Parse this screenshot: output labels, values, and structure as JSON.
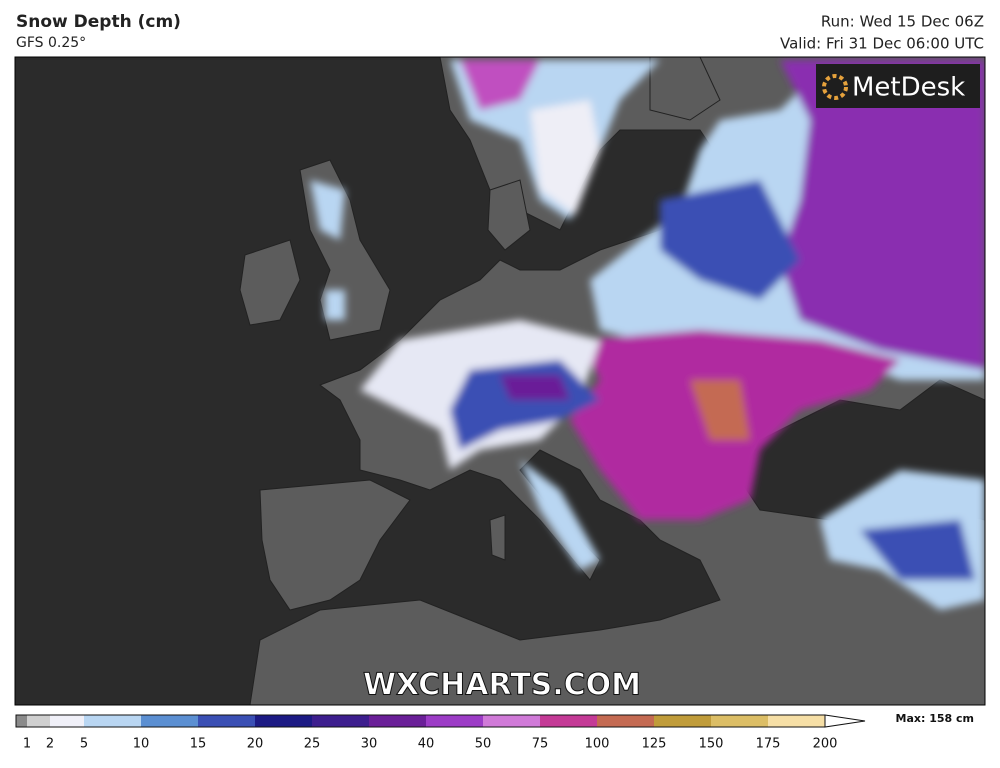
{
  "header": {
    "title": "Snow Depth (cm)",
    "model": "GFS 0.25°",
    "run": "Run: Wed 15 Dec 06Z",
    "valid": "Valid: Fri 31 Dec 06:00 UTC"
  },
  "map": {
    "logo": "MetDesk",
    "watermark": "WXCHARTS.COM"
  },
  "legend": {
    "max": "Max: 158 cm",
    "ticks": [
      1,
      2,
      5,
      10,
      15,
      20,
      25,
      30,
      40,
      50,
      75,
      100,
      125,
      150,
      175,
      200
    ],
    "colors": [
      "#8a8a8a",
      "#cfcfcf",
      "#f0f0f8",
      "#b9d6f2",
      "#5b8fd2",
      "#3a4fb4",
      "#1c1a84",
      "#3d1e8e",
      "#6a1f98",
      "#9c3cc6",
      "#d07ad8",
      "#c43a96",
      "#c46a52",
      "#c09c3a",
      "#dcbe66",
      "#f6dfa6"
    ]
  }
}
